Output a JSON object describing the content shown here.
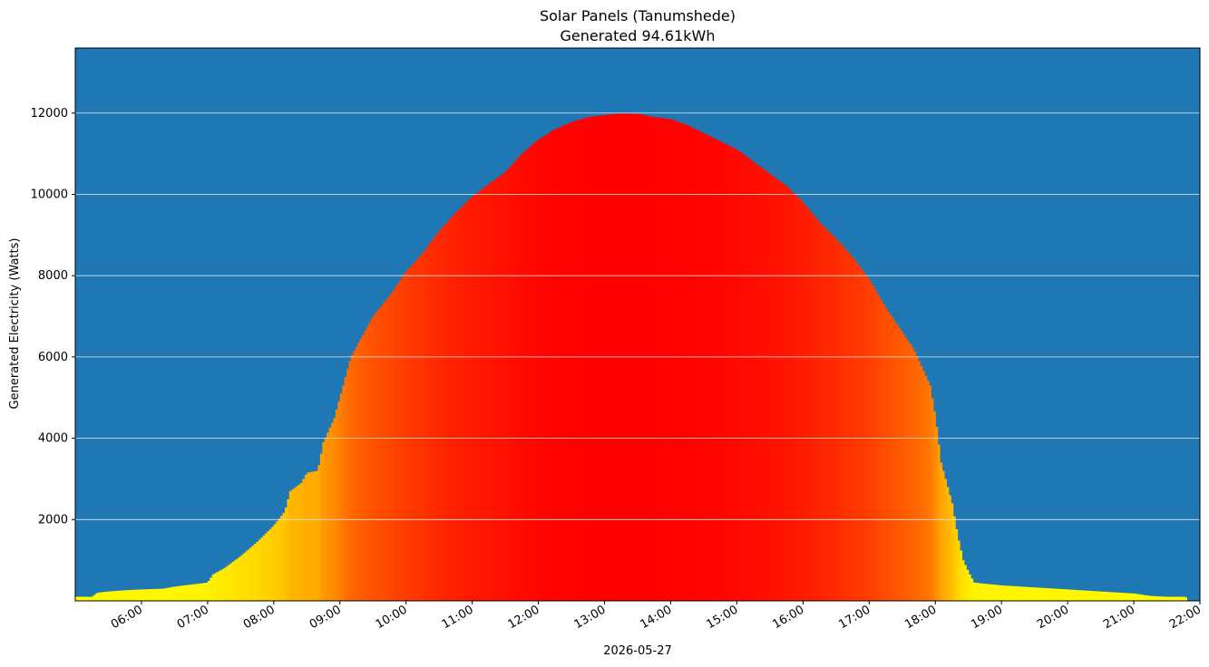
{
  "chart_data": {
    "type": "bar",
    "title": "Solar Panels (Tanumshede)",
    "subtitle": "Generated 94.61kWh",
    "xlabel": "2026-05-27",
    "ylabel": "Generated Electricity (Watts)",
    "x_range_hours": [
      5.0,
      22.0
    ],
    "ylim": [
      0,
      13600
    ],
    "grid": "horizontal",
    "colors": {
      "background": "#1f77b4",
      "grid": "#e6e6e6",
      "low": "#ffff00",
      "high": "#ff0000"
    },
    "x_ticks": [
      "06:00",
      "07:00",
      "08:00",
      "09:00",
      "10:00",
      "11:00",
      "12:00",
      "13:00",
      "14:00",
      "15:00",
      "16:00",
      "17:00",
      "18:00",
      "19:00",
      "20:00",
      "21:00",
      "22:00"
    ],
    "y_ticks": [
      2000,
      4000,
      6000,
      8000,
      10000,
      12000
    ],
    "profile": [
      {
        "t": "05:00",
        "w": 100
      },
      {
        "t": "05:15",
        "w": 100
      },
      {
        "t": "05:20",
        "w": 200
      },
      {
        "t": "05:30",
        "w": 230
      },
      {
        "t": "05:45",
        "w": 260
      },
      {
        "t": "06:00",
        "w": 280
      },
      {
        "t": "06:20",
        "w": 300
      },
      {
        "t": "06:30",
        "w": 350
      },
      {
        "t": "06:45",
        "w": 400
      },
      {
        "t": "07:00",
        "w": 450
      },
      {
        "t": "07:05",
        "w": 650
      },
      {
        "t": "07:15",
        "w": 800
      },
      {
        "t": "07:30",
        "w": 1100
      },
      {
        "t": "07:45",
        "w": 1450
      },
      {
        "t": "08:00",
        "w": 1850
      },
      {
        "t": "08:10",
        "w": 2200
      },
      {
        "t": "08:15",
        "w": 2700
      },
      {
        "t": "08:25",
        "w": 2900
      },
      {
        "t": "08:30",
        "w": 3150
      },
      {
        "t": "08:40",
        "w": 3200
      },
      {
        "t": "08:45",
        "w": 3900
      },
      {
        "t": "08:55",
        "w": 4500
      },
      {
        "t": "09:00",
        "w": 5000
      },
      {
        "t": "09:10",
        "w": 6000
      },
      {
        "t": "09:20",
        "w": 6500
      },
      {
        "t": "09:30",
        "w": 7000
      },
      {
        "t": "09:45",
        "w": 7500
      },
      {
        "t": "10:00",
        "w": 8100
      },
      {
        "t": "10:15",
        "w": 8550
      },
      {
        "t": "10:30",
        "w": 9100
      },
      {
        "t": "10:45",
        "w": 9550
      },
      {
        "t": "11:00",
        "w": 9950
      },
      {
        "t": "11:15",
        "w": 10250
      },
      {
        "t": "11:30",
        "w": 10550
      },
      {
        "t": "11:45",
        "w": 11000
      },
      {
        "t": "12:00",
        "w": 11350
      },
      {
        "t": "12:15",
        "w": 11600
      },
      {
        "t": "12:30",
        "w": 11780
      },
      {
        "t": "12:45",
        "w": 11900
      },
      {
        "t": "13:00",
        "w": 11950
      },
      {
        "t": "13:15",
        "w": 11990
      },
      {
        "t": "13:30",
        "w": 11980
      },
      {
        "t": "13:45",
        "w": 11900
      },
      {
        "t": "14:00",
        "w": 11850
      },
      {
        "t": "14:15",
        "w": 11700
      },
      {
        "t": "14:30",
        "w": 11500
      },
      {
        "t": "14:45",
        "w": 11300
      },
      {
        "t": "15:00",
        "w": 11100
      },
      {
        "t": "15:15",
        "w": 10800
      },
      {
        "t": "15:30",
        "w": 10500
      },
      {
        "t": "15:45",
        "w": 10200
      },
      {
        "t": "16:00",
        "w": 9800
      },
      {
        "t": "16:15",
        "w": 9300
      },
      {
        "t": "16:30",
        "w": 8900
      },
      {
        "t": "16:45",
        "w": 8450
      },
      {
        "t": "17:00",
        "w": 7900
      },
      {
        "t": "17:15",
        "w": 7200
      },
      {
        "t": "17:30",
        "w": 6600
      },
      {
        "t": "17:40",
        "w": 6200
      },
      {
        "t": "17:45",
        "w": 5900
      },
      {
        "t": "17:55",
        "w": 5300
      },
      {
        "t": "18:00",
        "w": 4500
      },
      {
        "t": "18:05",
        "w": 3400
      },
      {
        "t": "18:10",
        "w": 2900
      },
      {
        "t": "18:15",
        "w": 2400
      },
      {
        "t": "18:20",
        "w": 1600
      },
      {
        "t": "18:25",
        "w": 1000
      },
      {
        "t": "18:30",
        "w": 700
      },
      {
        "t": "18:35",
        "w": 450
      },
      {
        "t": "18:45",
        "w": 420
      },
      {
        "t": "19:00",
        "w": 380
      },
      {
        "t": "19:30",
        "w": 330
      },
      {
        "t": "20:00",
        "w": 280
      },
      {
        "t": "20:30",
        "w": 230
      },
      {
        "t": "21:00",
        "w": 180
      },
      {
        "t": "21:15",
        "w": 120
      },
      {
        "t": "21:30",
        "w": 100
      },
      {
        "t": "21:45",
        "w": 100
      },
      {
        "t": "22:00",
        "w": 0
      }
    ]
  }
}
